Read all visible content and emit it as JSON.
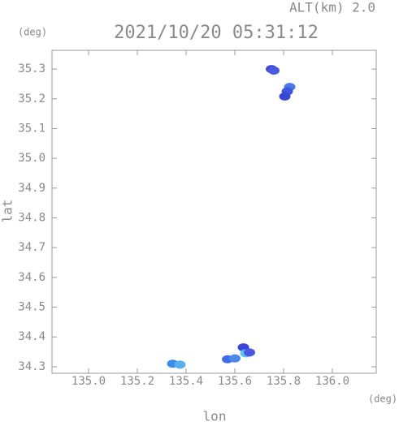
{
  "chart_data": {
    "type": "scatter",
    "title": "2021/10/20 05:31:12",
    "subtitle": "ALT(km) 2.0",
    "x_label": "lon",
    "y_label": "lat",
    "x_unit": "(deg)",
    "y_unit": "(deg)",
    "x": [
      135.75,
      135.76,
      135.825,
      135.815,
      135.805,
      135.345,
      135.375,
      135.57,
      135.6,
      135.635,
      135.645,
      135.66
    ],
    "values": [
      35.3,
      35.295,
      35.24,
      35.225,
      35.208,
      34.31,
      34.307,
      34.325,
      34.328,
      34.365,
      34.345,
      34.348
    ],
    "colors": [
      "#3e49d8",
      "#4a5ae0",
      "#4a7ae8",
      "#3e55dc",
      "#3a46d4",
      "#3a8ee8",
      "#58b0f0",
      "#3f6ee4",
      "#4a8aec",
      "#3f45dc",
      "#5ac0f0",
      "#4a58e0"
    ],
    "xlim": [
      134.85,
      136.18
    ],
    "ylim": [
      34.278,
      35.363
    ],
    "xticks": [
      {
        "value": 135.0,
        "label": "135.0"
      },
      135.2,
      135.4,
      135.6,
      135.8,
      {
        "value": 136.0,
        "label": "136.0"
      }
    ],
    "yticks": [
      34.3,
      34.4,
      34.5,
      34.6,
      34.7,
      34.8,
      34.9,
      {
        "value": 35.0,
        "label": "35.0"
      },
      35.1,
      35.2,
      35.3
    ]
  }
}
